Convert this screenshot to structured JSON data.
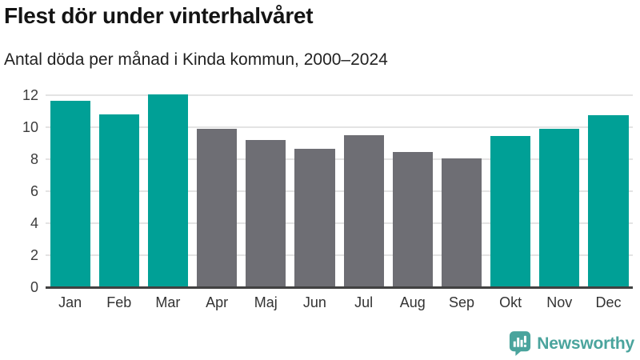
{
  "header": {
    "title": "Flest dör under vinterhalvåret",
    "subtitle": "Antal döda per månad i Kinda kommun, 2000–2024"
  },
  "chart_data": {
    "type": "bar",
    "title": "Flest dör under vinterhalvåret",
    "subtitle": "Antal döda per månad i Kinda kommun, 2000–2024",
    "categories": [
      "Jan",
      "Feb",
      "Mar",
      "Apr",
      "Maj",
      "Jun",
      "Jul",
      "Aug",
      "Sep",
      "Okt",
      "Nov",
      "Dec"
    ],
    "values": [
      11.65,
      10.8,
      12.05,
      9.9,
      9.2,
      8.65,
      9.5,
      8.45,
      8.05,
      9.45,
      9.9,
      10.75
    ],
    "highlighted": [
      true,
      true,
      true,
      false,
      false,
      false,
      false,
      false,
      false,
      true,
      true,
      true
    ],
    "highlight_meaning": "winter half-year months shown in teal, summer months in gray",
    "xlabel": "",
    "ylabel": "",
    "ylim": [
      0,
      12
    ],
    "yticks": [
      0,
      2,
      4,
      6,
      8,
      10,
      12
    ],
    "grid": true,
    "legend": "none",
    "bar_color_highlight": "#00a096",
    "bar_color_default": "#6e6e74",
    "grid_color": "#e4e4e4",
    "axis_color": "#414141"
  },
  "branding": {
    "name": "Newsworthy",
    "logo_icon": "speech-bubble-bar-chart-icon",
    "color": "#4aa49d"
  }
}
